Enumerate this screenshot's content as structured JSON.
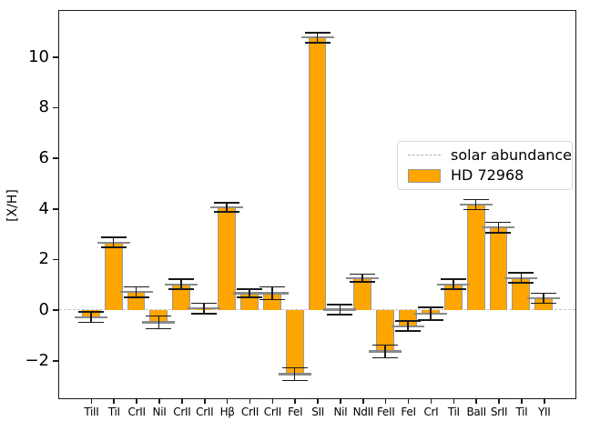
{
  "chart_data": {
    "type": "bar",
    "title": "",
    "xlabel": "",
    "ylabel": "[X/H]",
    "categories": [
      "TiII",
      "TiI",
      "CrII",
      "NiI",
      "CrII",
      "CrII",
      "Hβ",
      "CrII",
      "CrII",
      "FeI",
      "SII",
      "NiI",
      "NdII",
      "FeII",
      "FeI",
      "CrI",
      "TiI",
      "BaII",
      "SrII",
      "TiI",
      "YII"
    ],
    "series": [
      {
        "name": "HD 72968",
        "values": [
          -0.3,
          2.65,
          0.7,
          -0.5,
          1.0,
          0.05,
          4.05,
          0.65,
          0.65,
          -2.55,
          10.75,
          0.0,
          1.25,
          -1.65,
          -0.65,
          -0.15,
          1.0,
          4.15,
          3.25,
          1.25,
          0.45
        ],
        "errors": [
          0.2,
          0.2,
          0.2,
          0.25,
          0.2,
          0.2,
          0.18,
          0.15,
          0.25,
          0.25,
          0.2,
          0.2,
          0.15,
          0.25,
          0.2,
          0.25,
          0.2,
          0.2,
          0.2,
          0.2,
          0.2
        ]
      }
    ],
    "ylim": [
      -3.5,
      11.8
    ],
    "yticks": [
      -2,
      0,
      2,
      4,
      6,
      8,
      10
    ],
    "grid": false,
    "zero_line": {
      "value": 0,
      "style": "dashed",
      "color": "#c4c4c4"
    },
    "legend": {
      "position": "center-right",
      "entries": [
        {
          "type": "dashed-line",
          "label": "solar abundance",
          "color": "#b0b0b0"
        },
        {
          "type": "patch",
          "label": "HD 72968",
          "color": "#ffa500",
          "edge": "#999999"
        }
      ]
    },
    "colors": {
      "bar_fill": "#ffa500",
      "bar_edge": "#999999",
      "error_line": "#1a1a1a",
      "error_marker": "#8a8a8a",
      "axis": "#1a1a1a",
      "text": "#000000"
    }
  }
}
